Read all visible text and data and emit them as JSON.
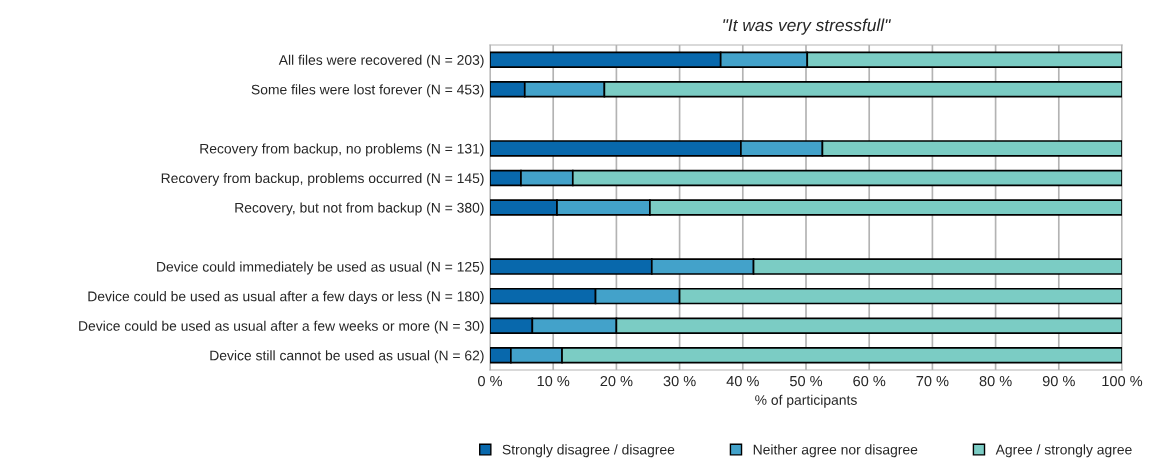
{
  "chart_data": {
    "type": "bar",
    "orientation": "horizontal",
    "stacked": true,
    "title": "\"It was very stressfull\"",
    "xlabel": "% of participants",
    "categories": [
      "All files were recovered (N = 203)",
      "Some files were lost forever (N = 453)",
      null,
      "Recovery from backup, no problems (N = 131)",
      "Recovery from backup, problems occurred (N = 145)",
      "Recovery, but not from backup (N = 380)",
      null,
      "Device could immediately be used as usual (N = 125)",
      "Device could be used as usual after a few days or less (N = 180)",
      "Device could be used as usual after a few weeks or more (N = 30)",
      "Device still cannot be used as usual (N = 62)"
    ],
    "series": [
      {
        "name": "Strongly disagree / disagree",
        "color": "#0868ac",
        "values": [
          36.5,
          5.5,
          null,
          39.7,
          4.9,
          10.6,
          null,
          25.6,
          16.7,
          6.7,
          3.3
        ]
      },
      {
        "name": "Neither agree nor disagree",
        "color": "#43a2ca",
        "values": [
          13.7,
          12.6,
          null,
          12.9,
          8.2,
          14.7,
          null,
          16.1,
          13.3,
          13.3,
          8.1
        ]
      },
      {
        "name": "Agree / strongly agree",
        "color": "#7bccc4",
        "values": [
          49.8,
          81.9,
          null,
          47.4,
          86.9,
          74.7,
          null,
          58.3,
          70.0,
          80.0,
          88.6
        ]
      }
    ],
    "xlim": [
      0,
      100
    ],
    "xticks": [
      {
        "value": 0,
        "label": "0 %"
      },
      {
        "value": 10,
        "label": "10 %"
      },
      {
        "value": 20,
        "label": "20 %"
      },
      {
        "value": 30,
        "label": "30 %"
      },
      {
        "value": 40,
        "label": "40 %"
      },
      {
        "value": 50,
        "label": "50 %"
      },
      {
        "value": 60,
        "label": "60 %"
      },
      {
        "value": 70,
        "label": "70 %"
      },
      {
        "value": 80,
        "label": "80 %"
      },
      {
        "value": 90,
        "label": "90 %"
      },
      {
        "value": 100,
        "label": "100 %"
      }
    ],
    "grid": "x",
    "legend": "bottom"
  }
}
